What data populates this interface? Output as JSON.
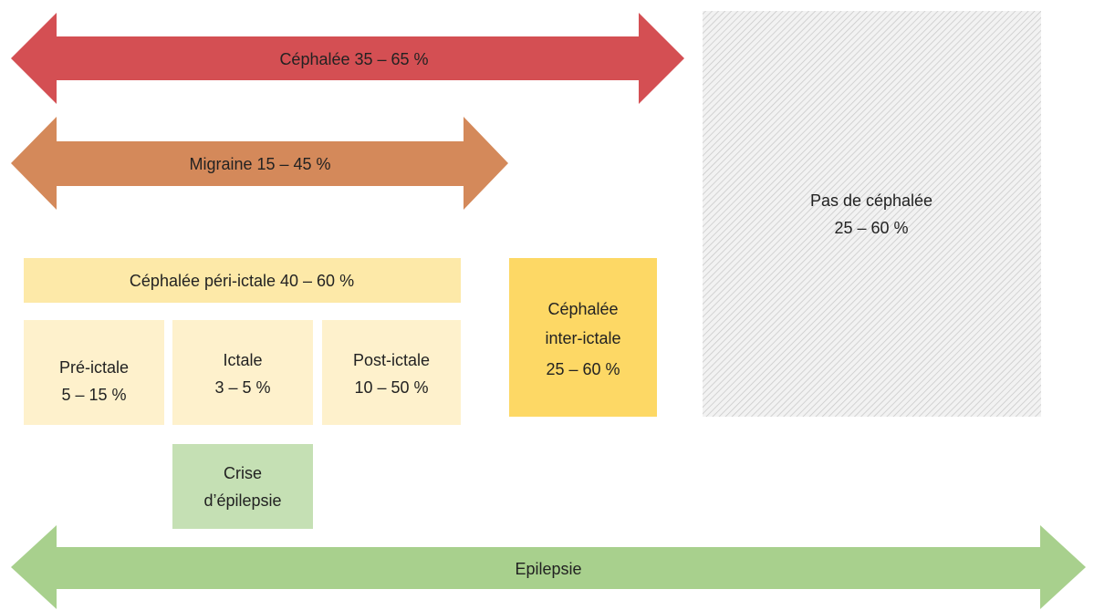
{
  "arrows": {
    "cephalee": {
      "label": "Céphalée 35 – 65 %"
    },
    "migraine": {
      "label": "Migraine 15 – 45 %"
    },
    "epilepsie": {
      "label": "Epilepsie"
    }
  },
  "boxes": {
    "pas_de_cephalee": {
      "lines": [
        "Pas de céphalée",
        "25 – 60 %"
      ]
    },
    "peri_ictale": {
      "lines": [
        "Céphalée péri-ictale 40 – 60 %"
      ]
    },
    "pre_ictale": {
      "lines": [
        "Pré-ictale",
        "5 – 15 %"
      ]
    },
    "ictale": {
      "lines": [
        "Ictale",
        "3 – 5 %"
      ]
    },
    "post_ictale": {
      "lines": [
        "Post-ictale",
        "10 – 50 %"
      ]
    },
    "inter_ictale": {
      "lines": [
        "Céphalée",
        "inter-ictale",
        "25 – 60 %"
      ]
    },
    "crise": {
      "lines": [
        "Crise",
        "d’épilepsie"
      ]
    }
  }
}
